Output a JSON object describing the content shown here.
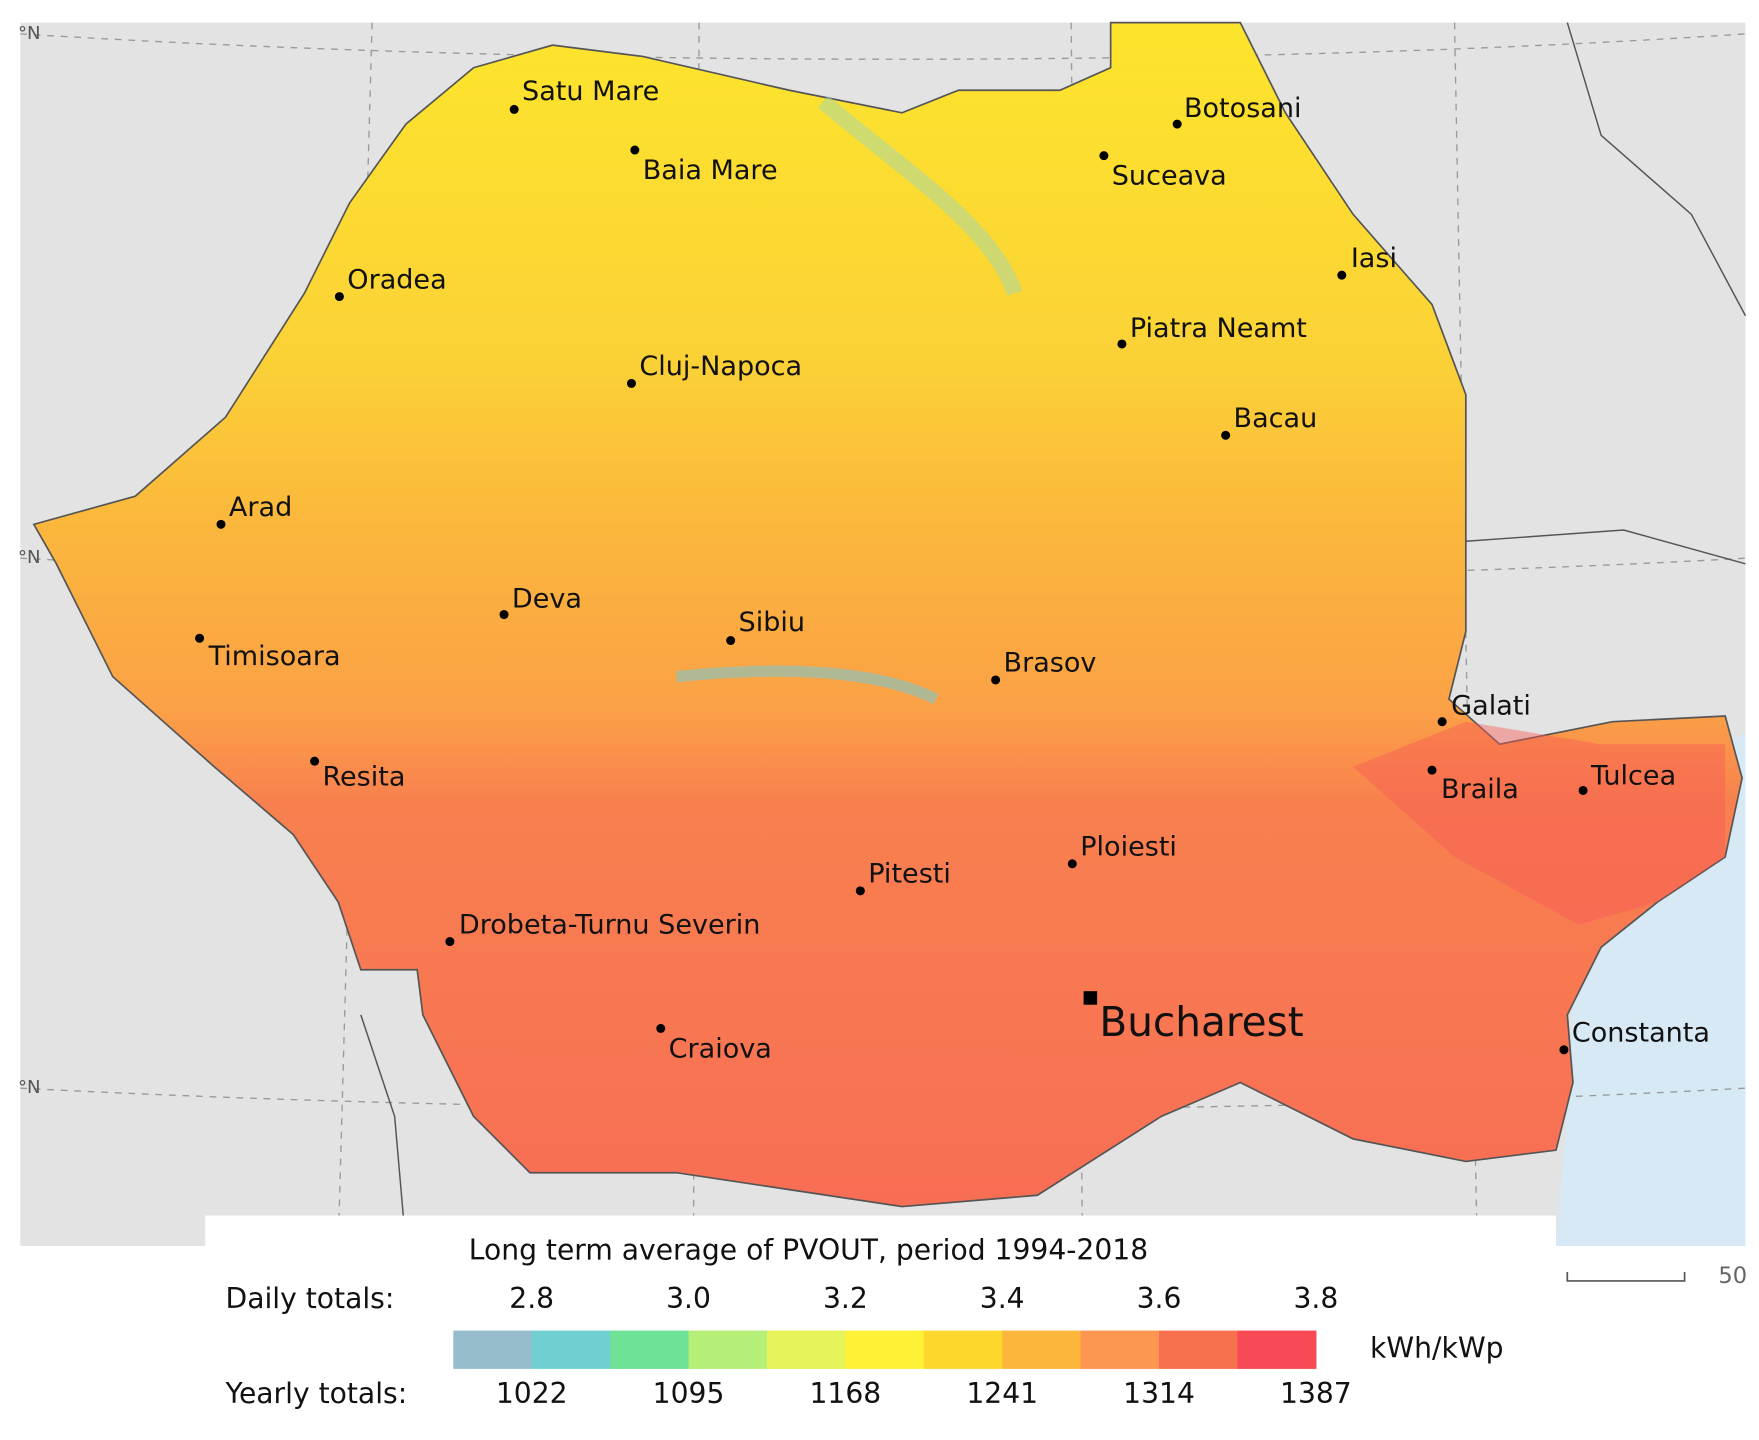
{
  "graticule_labels": [
    "°N",
    "°N",
    "°N"
  ],
  "cities": [
    {
      "name": "Satu Mare"
    },
    {
      "name": "Baia Mare"
    },
    {
      "name": "Botosani"
    },
    {
      "name": "Suceava"
    },
    {
      "name": "Iasi"
    },
    {
      "name": "Oradea"
    },
    {
      "name": "Piatra Neamt"
    },
    {
      "name": "Cluj-Napoca"
    },
    {
      "name": "Bacau"
    },
    {
      "name": "Arad"
    },
    {
      "name": "Deva"
    },
    {
      "name": "Sibiu"
    },
    {
      "name": "Timisoara"
    },
    {
      "name": "Brasov"
    },
    {
      "name": "Galati"
    },
    {
      "name": "Resita"
    },
    {
      "name": "Braila"
    },
    {
      "name": "Tulcea"
    },
    {
      "name": "Ploiesti"
    },
    {
      "name": "Pitesti"
    },
    {
      "name": "Drobeta-Turnu Severin"
    },
    {
      "name": "Bucharest",
      "capital": true
    },
    {
      "name": "Craiova"
    },
    {
      "name": "Constanta"
    }
  ],
  "legend": {
    "title": "Long term average of PVOUT, period 1994-2018",
    "daily_label": "Daily totals:",
    "daily_values": [
      "2.8",
      "3.0",
      "3.2",
      "3.4",
      "3.6",
      "3.8"
    ],
    "yearly_label": "Yearly totals:",
    "yearly_values": [
      "1022",
      "1095",
      "1168",
      "1241",
      "1314",
      "1387"
    ],
    "unit": "kWh/kWp",
    "colors": [
      "#97bccc",
      "#70cfd0",
      "#6ee296",
      "#b6ef77",
      "#e6f35a",
      "#fff236",
      "#fdd72b",
      "#fbb63b",
      "#fc9650",
      "#f8714f",
      "#f74a55"
    ]
  },
  "scale_label": "50"
}
